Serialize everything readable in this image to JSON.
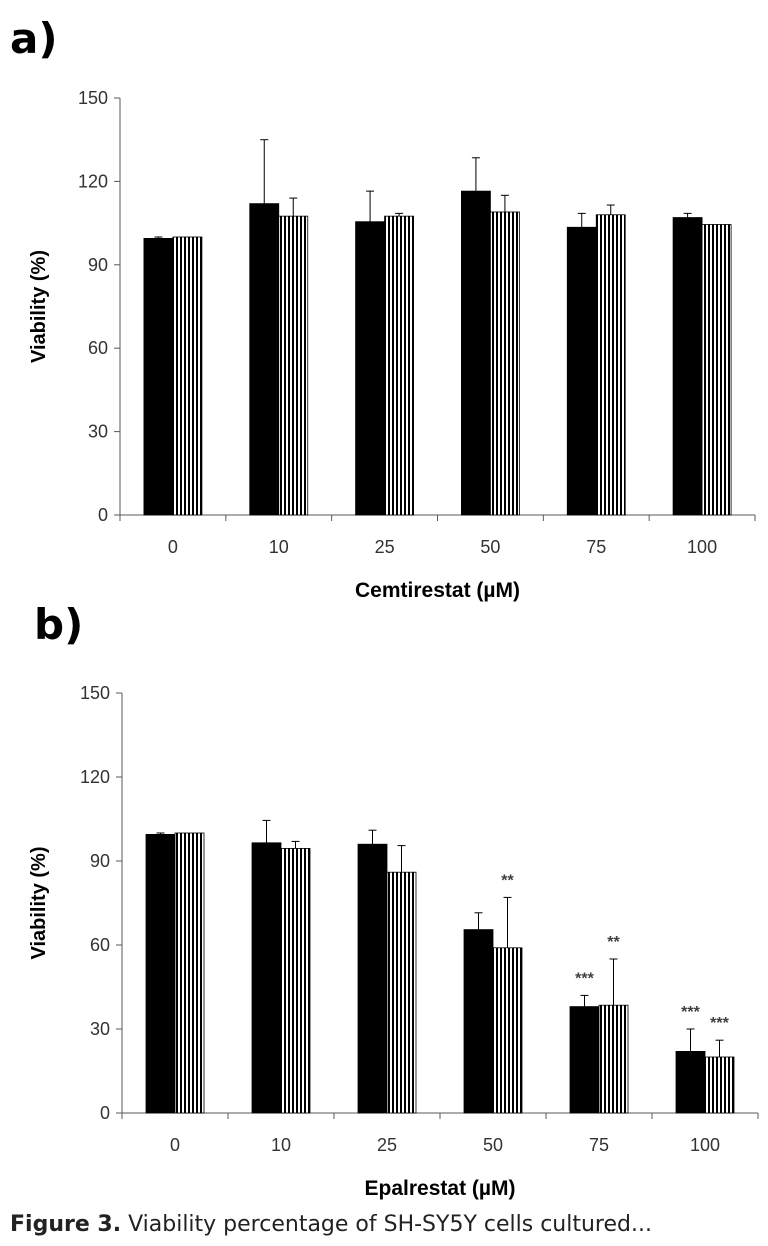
{
  "panel_labels": {
    "a": "a)",
    "b": "b)"
  },
  "caption": {
    "prefix": "Figure 3.",
    "text": "Viability percentage of SH-SY5Y cells cultured..."
  },
  "colors": {
    "bar_solid": "#000000",
    "bar_striped_bg": "#ffffff",
    "stripe": "#000000",
    "axis": "#595959",
    "stars": "#404040"
  },
  "chart_data": [
    {
      "type": "bar",
      "panel": "a",
      "xlabel": "Cemtirestat (µM)",
      "ylabel": "Viability (%)",
      "ylim": [
        0,
        150
      ],
      "yticks": [
        0,
        30,
        60,
        90,
        120,
        150
      ],
      "categories": [
        "0",
        "10",
        "25",
        "50",
        "75",
        "100"
      ],
      "series": [
        {
          "name": "solid",
          "style": "solid",
          "values": [
            99.5,
            112,
            105.5,
            116.5,
            103.5,
            107
          ],
          "errors": [
            0.5,
            23,
            11,
            12,
            5,
            1.5
          ],
          "annotations": [
            "",
            "",
            "",
            "",
            "",
            ""
          ]
        },
        {
          "name": "striped",
          "style": "striped",
          "values": [
            100,
            107.5,
            107.5,
            109,
            108,
            104.5
          ],
          "errors": [
            0,
            6.5,
            1,
            6,
            3.5,
            0
          ],
          "annotations": [
            "",
            "",
            "",
            "",
            "",
            ""
          ]
        }
      ]
    },
    {
      "type": "bar",
      "panel": "b",
      "xlabel": "Epalrestat (µM)",
      "ylabel": "Viability (%)",
      "ylim": [
        0,
        150
      ],
      "yticks": [
        0,
        30,
        60,
        90,
        120,
        150
      ],
      "categories": [
        "0",
        "10",
        "25",
        "50",
        "75",
        "100"
      ],
      "series": [
        {
          "name": "solid",
          "style": "solid",
          "values": [
            99.5,
            96.5,
            96,
            65.5,
            38,
            22
          ],
          "errors": [
            0.5,
            8,
            5,
            6,
            4,
            8
          ],
          "annotations": [
            "",
            "",
            "",
            "",
            "***",
            "***"
          ]
        },
        {
          "name": "striped",
          "style": "striped",
          "values": [
            100,
            94.5,
            86,
            59,
            38.5,
            20
          ],
          "errors": [
            0,
            2.5,
            9.5,
            18,
            16.5,
            6
          ],
          "annotations": [
            "",
            "",
            "",
            "**",
            "**",
            "***"
          ]
        }
      ]
    }
  ]
}
